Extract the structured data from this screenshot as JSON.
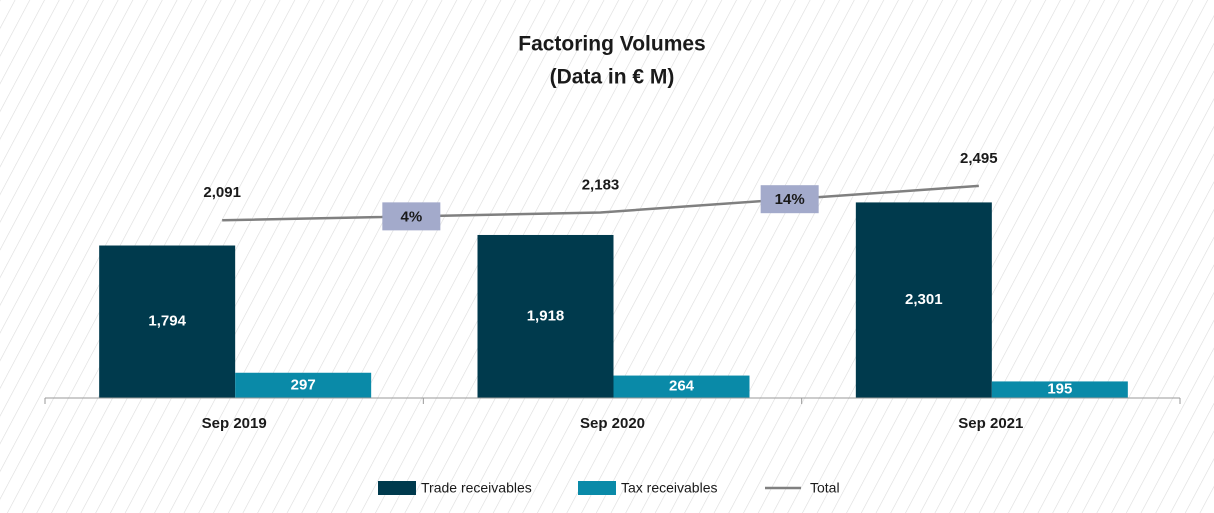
{
  "chart_data": {
    "type": "bar",
    "title": "Factoring Volumes",
    "subtitle": "(Data in € M)",
    "categories": [
      "Sep 2019",
      "Sep 2020",
      "Sep 2021"
    ],
    "series": [
      {
        "name": "Trade receivables",
        "color": "#003a4d",
        "values": [
          1794,
          1918,
          2301
        ],
        "value_labels": [
          "1,794",
          "1,918",
          "2,301"
        ]
      },
      {
        "name": "Tax receivables",
        "color": "#0a8aa8",
        "values": [
          297,
          264,
          195
        ],
        "value_labels": [
          "297",
          "264",
          "195"
        ]
      },
      {
        "name": "Total",
        "type": "line",
        "color": "#808080",
        "values": [
          2091,
          2183,
          2495
        ],
        "value_labels": [
          "2,091",
          "2,183",
          "2,495"
        ]
      }
    ],
    "annotations": [
      {
        "text": "4%"
      },
      {
        "text": "14%"
      }
    ],
    "annotation_color": "#a3aacb",
    "ylim": [
      0,
      3000
    ]
  }
}
